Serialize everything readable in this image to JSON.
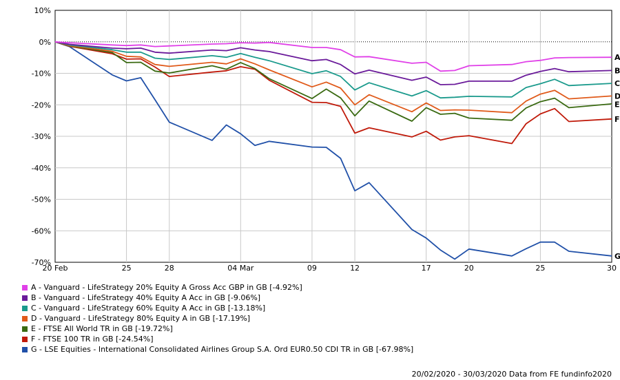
{
  "chart_data": {
    "type": "line",
    "ylim": [
      -70,
      10
    ],
    "y_ticks": [
      "10%",
      "0%",
      "-10%",
      "-20%",
      "-30%",
      "-40%",
      "-50%",
      "-60%",
      "-70%"
    ],
    "x_ticks": [
      "20 Feb",
      "25",
      "28",
      "04 Mar",
      "09",
      "12",
      "17",
      "20",
      "25",
      "30"
    ],
    "x": [
      "2020-02-20",
      "2020-02-21",
      "2020-02-24",
      "2020-02-25",
      "2020-02-26",
      "2020-02-27",
      "2020-02-28",
      "2020-03-02",
      "2020-03-03",
      "2020-03-04",
      "2020-03-05",
      "2020-03-06",
      "2020-03-09",
      "2020-03-10",
      "2020-03-11",
      "2020-03-12",
      "2020-03-13",
      "2020-03-16",
      "2020-03-17",
      "2020-03-18",
      "2020-03-19",
      "2020-03-20",
      "2020-03-23",
      "2020-03-24",
      "2020-03-25",
      "2020-03-26",
      "2020-03-27",
      "2020-03-30"
    ],
    "grid": true,
    "legend_position": "bottom-left",
    "series": [
      {
        "id": "A",
        "name": "A - Vanguard - LifeStrategy 20% Equity A Gross Acc GBP in GB [-4.92%]",
        "color": "#e040e8",
        "values": [
          0,
          -0.3,
          -1.0,
          -1.2,
          -1.0,
          -1.5,
          -1.3,
          -0.7,
          -0.6,
          -0.3,
          -0.4,
          -0.2,
          -1.8,
          -1.8,
          -2.5,
          -4.8,
          -4.7,
          -6.8,
          -6.5,
          -9.3,
          -9.1,
          -7.6,
          -7.2,
          -6.3,
          -5.9,
          -5.1,
          -5.0,
          -4.9
        ]
      },
      {
        "id": "B",
        "name": "B - Vanguard - LifeStrategy 40% Equity A Acc in GB [-9.06%]",
        "color": "#6a1a9a",
        "values": [
          0,
          -0.8,
          -2.0,
          -2.2,
          -2.0,
          -3.3,
          -3.6,
          -2.6,
          -2.8,
          -1.9,
          -2.6,
          -3.1,
          -6.0,
          -5.6,
          -7.2,
          -10.2,
          -9.0,
          -12.2,
          -11.2,
          -13.6,
          -13.5,
          -12.5,
          -12.5,
          -10.6,
          -9.4,
          -8.5,
          -9.5,
          -9.1
        ]
      },
      {
        "id": "C",
        "name": "C - Vanguard - LifeStrategy 60% Equity A Acc in GB [-13.18%]",
        "color": "#1a9a8c",
        "values": [
          0,
          -1.0,
          -2.5,
          -3.3,
          -3.3,
          -5.2,
          -5.6,
          -4.4,
          -4.9,
          -3.7,
          -4.9,
          -6.0,
          -10.1,
          -9.2,
          -11.0,
          -15.3,
          -13.0,
          -17.2,
          -15.5,
          -17.8,
          -17.6,
          -17.3,
          -17.5,
          -14.5,
          -13.3,
          -11.9,
          -13.9,
          -13.2
        ]
      },
      {
        "id": "D",
        "name": "D - Vanguard - LifeStrategy 80% Equity A in GB [-17.19%]",
        "color": "#e05a1a",
        "values": [
          0,
          -1.2,
          -3.0,
          -4.6,
          -4.8,
          -7.2,
          -7.8,
          -6.5,
          -7.0,
          -5.4,
          -7.0,
          -8.9,
          -14.3,
          -12.8,
          -14.7,
          -20.0,
          -16.8,
          -22.2,
          -19.4,
          -21.8,
          -21.6,
          -21.7,
          -22.5,
          -18.8,
          -16.6,
          -15.4,
          -18.1,
          -17.2
        ]
      },
      {
        "id": "E",
        "name": "E - FTSE All World TR in GB [-19.72%]",
        "color": "#3a6a12",
        "values": [
          0,
          -1.3,
          -3.4,
          -6.6,
          -6.5,
          -9.3,
          -9.9,
          -7.6,
          -8.7,
          -6.6,
          -8.5,
          -11.7,
          -18.0,
          -15.0,
          -17.8,
          -23.5,
          -18.8,
          -25.2,
          -20.9,
          -23.0,
          -22.7,
          -24.2,
          -24.9,
          -21.0,
          -19.0,
          -17.9,
          -20.9,
          -19.7
        ]
      },
      {
        "id": "F",
        "name": "F - FTSE 100 TR in GB [-24.54%]",
        "color": "#c01a0a",
        "values": [
          0,
          -1.4,
          -3.8,
          -5.5,
          -5.4,
          -8.0,
          -11.0,
          -9.6,
          -9.2,
          -7.9,
          -8.7,
          -12.2,
          -19.2,
          -19.3,
          -20.5,
          -29.0,
          -27.3,
          -30.2,
          -28.4,
          -31.2,
          -30.2,
          -29.8,
          -32.3,
          -26.0,
          -22.9,
          -21.2,
          -25.3,
          -24.5
        ]
      },
      {
        "id": "G",
        "name": "G - LSE Equities - International Consolidated Airlines Group S.A. Ord EUR0.50 CDI TR in GB [-67.98%]",
        "color": "#2050a8",
        "values": [
          0,
          -1.5,
          -10.5,
          -12.4,
          -11.4,
          -18.4,
          -25.5,
          -31.3,
          -26.4,
          -29.2,
          -32.9,
          -31.6,
          -33.4,
          -33.5,
          -37.0,
          -47.3,
          -44.7,
          -59.6,
          -62.3,
          -66.1,
          -69.0,
          -65.8,
          -68.0,
          -65.7,
          -63.6,
          -63.6,
          -66.5,
          -68.0
        ]
      }
    ]
  },
  "footer": {
    "text": "20/02/2020 - 30/03/2020 Data from FE fundinfo2020"
  }
}
